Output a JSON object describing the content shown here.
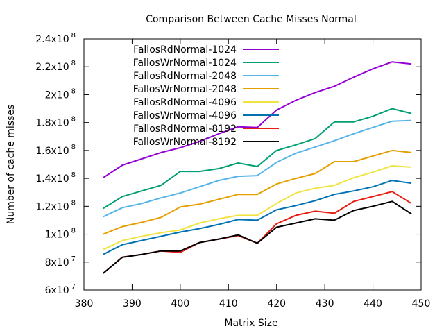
{
  "chart_data": {
    "type": "line",
    "title": "Comparison Between Cache Misses Normal",
    "xlabel": "Matrix Size",
    "ylabel": "Number of cache misses",
    "xlim": [
      380,
      450
    ],
    "ylim": [
      60000000,
      240000000
    ],
    "x_ticks": [
      380,
      390,
      400,
      410,
      420,
      430,
      440,
      450
    ],
    "y_ticks": [
      {
        "value": 60000000,
        "mantissa": "6x10",
        "exp": "7"
      },
      {
        "value": 80000000,
        "mantissa": "8x10",
        "exp": "7"
      },
      {
        "value": 100000000,
        "mantissa": "1x10",
        "exp": "8"
      },
      {
        "value": 120000000,
        "mantissa": "1.2x10",
        "exp": "8"
      },
      {
        "value": 140000000,
        "mantissa": "1.4x10",
        "exp": "8"
      },
      {
        "value": 160000000,
        "mantissa": "1.6x10",
        "exp": "8"
      },
      {
        "value": 180000000,
        "mantissa": "1.8x10",
        "exp": "8"
      },
      {
        "value": 200000000,
        "mantissa": "2x10",
        "exp": "8"
      },
      {
        "value": 220000000,
        "mantissa": "2.2x10",
        "exp": "8"
      },
      {
        "value": 240000000,
        "mantissa": "2.4x10",
        "exp": "8"
      }
    ],
    "grid": false,
    "legend_position": "top-left",
    "x": [
      384,
      388,
      392,
      396,
      400,
      404,
      408,
      412,
      416,
      420,
      424,
      428,
      432,
      436,
      440,
      444,
      448
    ],
    "series": [
      {
        "name": "FallosRdNormal-1024",
        "color": "#9400d3",
        "values": [
          140.5,
          149.5,
          154,
          158.5,
          162,
          166.5,
          172,
          177,
          176.5,
          189,
          196,
          201.5,
          206,
          212.5,
          218.5,
          223.5,
          222
        ]
      },
      {
        "name": "FallosWrNormal-1024",
        "color": "#009e73",
        "values": [
          118.5,
          127,
          131,
          135,
          145,
          145,
          147,
          151,
          148.5,
          160,
          164,
          168.5,
          180.5,
          180.5,
          184.5,
          190,
          186.5
        ]
      },
      {
        "name": "FallosRdNormal-2048",
        "color": "#56b4e9",
        "values": [
          112.5,
          119,
          122,
          126,
          129.5,
          134,
          138.5,
          141.5,
          142,
          151.5,
          158,
          162.5,
          167,
          172,
          176.5,
          181,
          181.5
        ]
      },
      {
        "name": "FallosWrNormal-2048",
        "color": "#e69f00",
        "values": [
          100,
          105.5,
          108.5,
          112,
          119.5,
          121.5,
          125,
          128.5,
          128.5,
          136,
          140,
          143.5,
          152,
          152,
          156,
          160,
          158.5
        ]
      },
      {
        "name": "FallosRdNormal-4096",
        "color": "#f0e442",
        "values": [
          89,
          95.5,
          98.5,
          101,
          103,
          108,
          111,
          113.5,
          113.5,
          122,
          129.5,
          133,
          135,
          140.5,
          144.5,
          149,
          148
        ]
      },
      {
        "name": "FallosWrNormal-4096",
        "color": "#0072b2",
        "values": [
          85.5,
          92.5,
          95.5,
          98.5,
          101.5,
          104,
          107,
          110.5,
          110,
          117.5,
          120.5,
          124,
          128.5,
          131,
          134,
          138.5,
          136.5
        ]
      },
      {
        "name": "FallosRdNormal-8192",
        "color": "#e51e10",
        "values": [
          72,
          83.5,
          85.5,
          88,
          87,
          94,
          96.5,
          99,
          93.5,
          107.5,
          113.5,
          116.5,
          115,
          123.5,
          127,
          130.5,
          122
        ]
      },
      {
        "name": "FallosWrNormal-8192",
        "color": "#000000",
        "values": [
          72,
          83.5,
          85.5,
          88,
          88,
          94,
          96.5,
          99.5,
          93.5,
          105,
          108,
          111,
          110,
          117,
          120,
          123.5,
          114.5
        ]
      }
    ],
    "values_unit_multiplier": 1000000
  }
}
